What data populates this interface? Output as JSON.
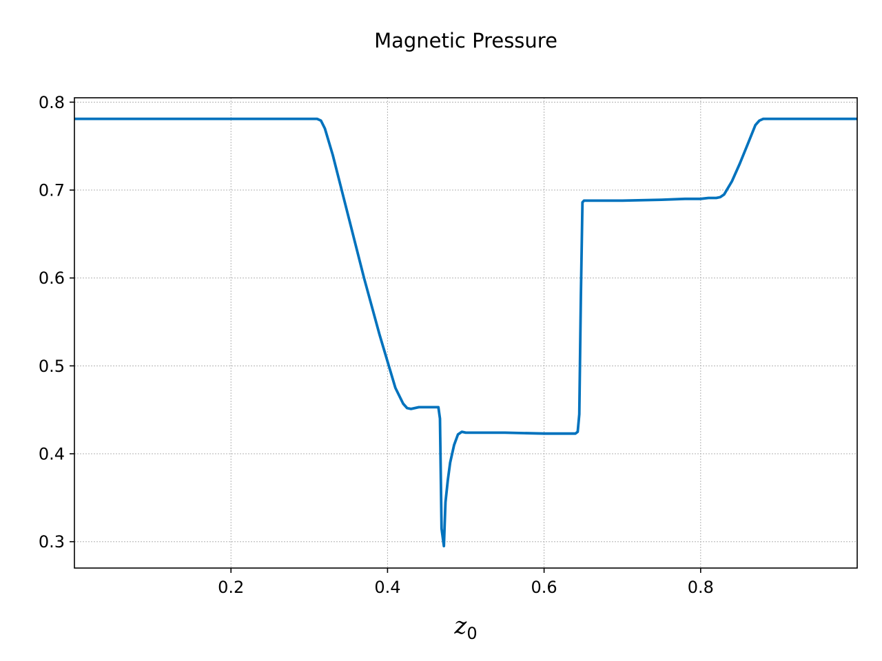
{
  "chart_data": {
    "type": "line",
    "title": "Magnetic Pressure",
    "xlabel": {
      "main": "z",
      "sub": "0"
    },
    "ylabel": "",
    "xlim": [
      0.0,
      1.0
    ],
    "ylim": [
      0.27,
      0.805
    ],
    "grid": true,
    "xticks": [
      0.2,
      0.4,
      0.6,
      0.8
    ],
    "xtick_labels": [
      "0.2",
      "0.4",
      "0.6",
      "0.8"
    ],
    "yticks": [
      0.3,
      0.4,
      0.5,
      0.6,
      0.7,
      0.8
    ],
    "ytick_labels": [
      "0.3",
      "0.4",
      "0.5",
      "0.6",
      "0.7",
      "0.8"
    ],
    "series": [
      {
        "color": "#0072bd",
        "x": [
          0.0,
          0.1,
          0.2,
          0.3,
          0.31,
          0.315,
          0.32,
          0.33,
          0.35,
          0.37,
          0.39,
          0.41,
          0.42,
          0.425,
          0.43,
          0.44,
          0.465,
          0.467,
          0.469,
          0.472,
          0.474,
          0.477,
          0.48,
          0.485,
          0.49,
          0.495,
          0.5,
          0.55,
          0.6,
          0.64,
          0.643,
          0.645,
          0.647,
          0.649,
          0.651,
          0.66,
          0.7,
          0.75,
          0.78,
          0.8,
          0.81,
          0.82,
          0.825,
          0.83,
          0.84,
          0.85,
          0.86,
          0.87,
          0.875,
          0.88,
          0.9,
          0.95,
          1.0
        ],
        "y": [
          0.781,
          0.781,
          0.781,
          0.781,
          0.781,
          0.779,
          0.77,
          0.74,
          0.67,
          0.6,
          0.535,
          0.475,
          0.457,
          0.452,
          0.451,
          0.453,
          0.453,
          0.44,
          0.315,
          0.295,
          0.345,
          0.37,
          0.39,
          0.41,
          0.422,
          0.425,
          0.424,
          0.424,
          0.423,
          0.423,
          0.425,
          0.445,
          0.58,
          0.686,
          0.688,
          0.688,
          0.688,
          0.689,
          0.69,
          0.69,
          0.691,
          0.691,
          0.692,
          0.695,
          0.71,
          0.73,
          0.752,
          0.774,
          0.779,
          0.781,
          0.781,
          0.781,
          0.781
        ]
      }
    ]
  }
}
